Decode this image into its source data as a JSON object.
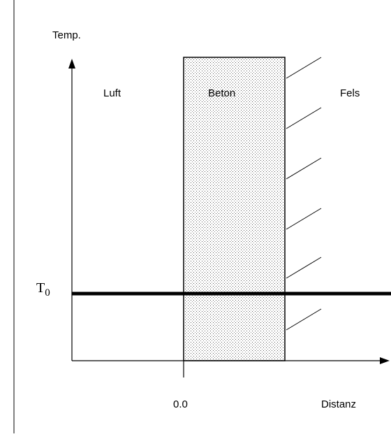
{
  "axes": {
    "y_label": "Temp.",
    "x_label": "Distanz",
    "x_tick": "0.0"
  },
  "regions": {
    "left": "Luft",
    "middle": "Beton",
    "right": "Fels"
  },
  "level": {
    "symbol": "T",
    "subscript": "0"
  }
}
